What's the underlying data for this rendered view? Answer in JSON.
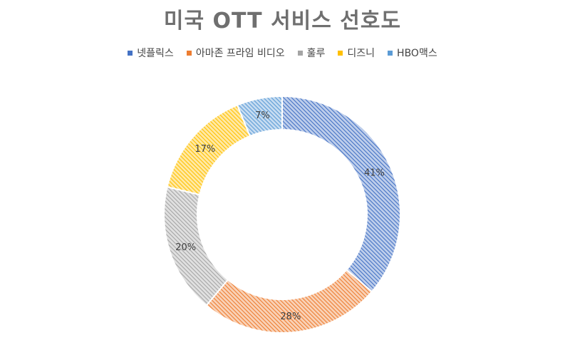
{
  "chart_data": {
    "type": "pie",
    "title": "미국 OTT 서비스 선호도",
    "legend_position": "top",
    "donut": true,
    "categories": [
      "넷플릭스",
      "아마존 프라임 비디오",
      "훌루",
      "디즈니",
      "HBO맥스"
    ],
    "values": [
      41,
      28,
      20,
      17,
      7
    ],
    "labels": [
      "41%",
      "28%",
      "20%",
      "17%",
      "7%"
    ],
    "colors": [
      "#4472c4",
      "#ed7d31",
      "#a5a5a5",
      "#ffc000",
      "#5b9bd5"
    ]
  }
}
